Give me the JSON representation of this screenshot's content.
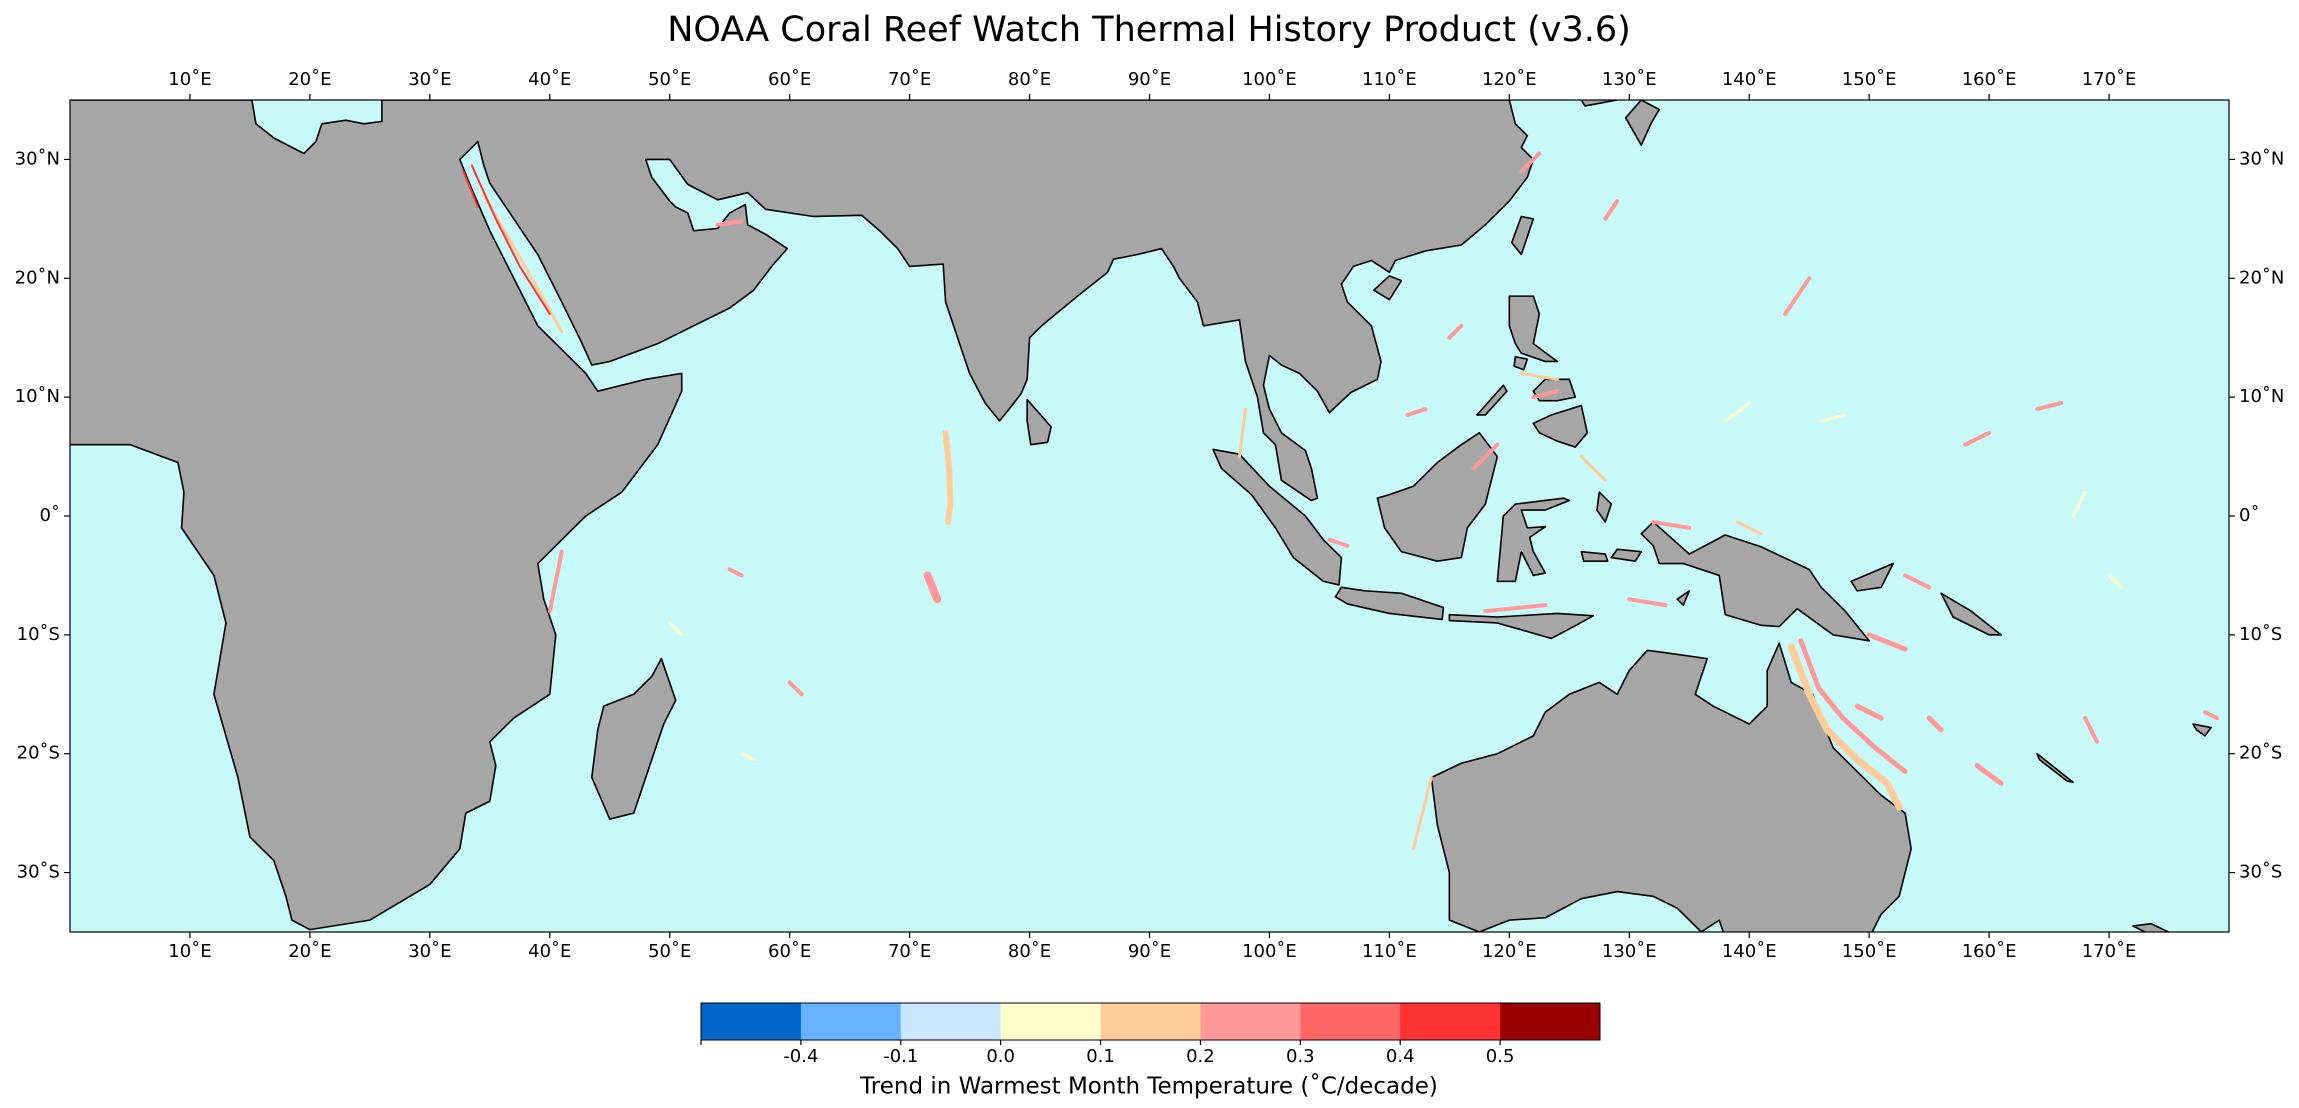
{
  "title": "NOAA Coral Reef Watch Thermal History Product (v3.6)",
  "map": {
    "xlim": [
      0,
      180
    ],
    "ylim": [
      -35,
      35
    ],
    "xticks": [
      {
        "value": 10,
        "label": "10˚E"
      },
      {
        "value": 20,
        "label": "20˚E"
      },
      {
        "value": 30,
        "label": "30˚E"
      },
      {
        "value": 40,
        "label": "40˚E"
      },
      {
        "value": 50,
        "label": "50˚E"
      },
      {
        "value": 60,
        "label": "60˚E"
      },
      {
        "value": 70,
        "label": "70˚E"
      },
      {
        "value": 80,
        "label": "80˚E"
      },
      {
        "value": 90,
        "label": "90˚E"
      },
      {
        "value": 100,
        "label": "100˚E"
      },
      {
        "value": 110,
        "label": "110˚E"
      },
      {
        "value": 120,
        "label": "120˚E"
      },
      {
        "value": 130,
        "label": "130˚E"
      },
      {
        "value": 140,
        "label": "140˚E"
      },
      {
        "value": 150,
        "label": "150˚E"
      },
      {
        "value": 160,
        "label": "160˚E"
      },
      {
        "value": 170,
        "label": "170˚E"
      }
    ],
    "yticks": [
      {
        "value": 30,
        "label": "30˚N"
      },
      {
        "value": 20,
        "label": "20˚N"
      },
      {
        "value": 10,
        "label": "10˚N"
      },
      {
        "value": 0,
        "label": "0˚"
      },
      {
        "value": -10,
        "label": "10˚S"
      },
      {
        "value": -20,
        "label": "20˚S"
      },
      {
        "value": -30,
        "label": "30˚S"
      }
    ],
    "land_color": "#a6a6a6",
    "ocean_color": "#c6f9f7"
  },
  "colorbar": {
    "label": "Trend in Warmest Month Temperature (˚C/decade)",
    "colors": [
      "#0066cc",
      "#66b2ff",
      "#cce5ff",
      "#ffffcc",
      "#ffcc99",
      "#ff9999",
      "#ff6666",
      "#ff3333",
      "#990000"
    ],
    "ticks": [
      -0.4,
      -0.1,
      {
        "value": 0,
        "label": "0.0"
      },
      0.1,
      0.2,
      0.3,
      0.4,
      0.5
    ]
  }
}
